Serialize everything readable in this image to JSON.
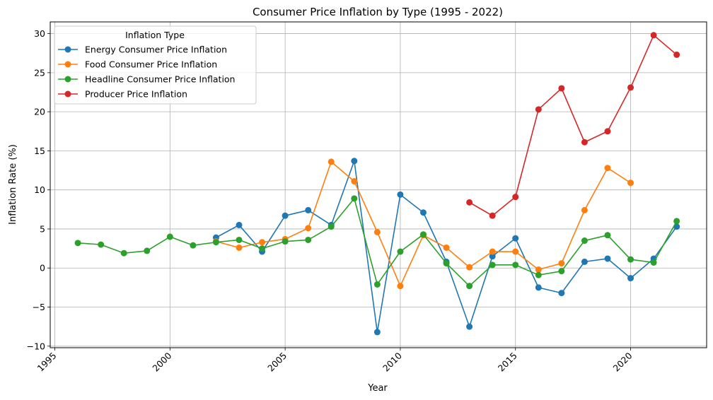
{
  "chart_data": {
    "type": "line",
    "title": "Consumer Price Inflation by Type (1995 - 2022)",
    "xlabel": "Year",
    "ylabel": "Inflation Rate (%)",
    "xlim": [
      1994.8,
      2023.3
    ],
    "ylim": [
      -10.2,
      31.5
    ],
    "xticks": [
      1995,
      2000,
      2005,
      2010,
      2015,
      2020
    ],
    "yticks": [
      -10,
      -5,
      0,
      5,
      10,
      15,
      20,
      25,
      30
    ],
    "grid": true,
    "legend": {
      "title": "Inflation Type",
      "placement": "upper-left"
    },
    "series": [
      {
        "name": "Energy Consumer Price Inflation",
        "color": "#1f77b4",
        "points": [
          [
            2002,
            3.9
          ],
          [
            2003,
            5.5
          ],
          [
            2004,
            2.1
          ],
          [
            2005,
            6.7
          ],
          [
            2006,
            7.4
          ],
          [
            2007,
            5.5
          ],
          [
            2008,
            13.7
          ],
          [
            2009,
            -8.2
          ],
          [
            2010,
            9.4
          ],
          [
            2011,
            7.1
          ],
          [
            2012,
            0.8
          ],
          [
            2013,
            -7.5
          ],
          [
            2014,
            1.5
          ],
          [
            2015,
            3.8
          ],
          [
            2016,
            -2.5
          ],
          [
            2017,
            -3.2
          ],
          [
            2018,
            0.8
          ],
          [
            2019,
            1.2
          ],
          [
            2020,
            -1.3
          ],
          [
            2021,
            1.2
          ],
          [
            2022,
            5.3
          ]
        ]
      },
      {
        "name": "Food Consumer Price Inflation",
        "color": "#ff7f0e",
        "points": [
          [
            2002,
            3.4
          ],
          [
            2003,
            2.6
          ],
          [
            2004,
            3.3
          ],
          [
            2005,
            3.7
          ],
          [
            2006,
            5.1
          ],
          [
            2007,
            13.6
          ],
          [
            2008,
            11.1
          ],
          [
            2009,
            4.6
          ],
          [
            2010,
            -2.3
          ],
          [
            2011,
            4.2
          ],
          [
            2012,
            2.6
          ],
          [
            2013,
            0.1
          ],
          [
            2014,
            2.1
          ],
          [
            2015,
            2.1
          ],
          [
            2016,
            -0.2
          ],
          [
            2017,
            0.6
          ],
          [
            2018,
            7.4
          ],
          [
            2019,
            12.8
          ],
          [
            2020,
            10.9
          ]
        ]
      },
      {
        "name": "Headline Consumer Price Inflation",
        "color": "#2ca02c",
        "points": [
          [
            1996,
            3.2
          ],
          [
            1997,
            3.0
          ],
          [
            1998,
            1.9
          ],
          [
            1999,
            2.2
          ],
          [
            2000,
            4.0
          ],
          [
            2001,
            2.9
          ],
          [
            2002,
            3.3
          ],
          [
            2003,
            3.6
          ],
          [
            2004,
            2.5
          ],
          [
            2005,
            3.4
          ],
          [
            2006,
            3.6
          ],
          [
            2007,
            5.3
          ],
          [
            2008,
            8.9
          ],
          [
            2009,
            -2.1
          ],
          [
            2010,
            2.1
          ],
          [
            2011,
            4.3
          ],
          [
            2012,
            0.6
          ],
          [
            2013,
            -2.3
          ],
          [
            2014,
            0.4
          ],
          [
            2015,
            0.4
          ],
          [
            2016,
            -0.9
          ],
          [
            2017,
            -0.4
          ],
          [
            2018,
            3.5
          ],
          [
            2019,
            4.2
          ],
          [
            2020,
            1.1
          ],
          [
            2021,
            0.7
          ],
          [
            2022,
            6.0
          ]
        ]
      },
      {
        "name": "Producer Price Inflation",
        "color": "#d62728",
        "points": [
          [
            2013,
            8.4
          ],
          [
            2014,
            6.7
          ],
          [
            2015,
            9.1
          ],
          [
            2016,
            20.3
          ],
          [
            2017,
            23.0
          ],
          [
            2018,
            16.1
          ],
          [
            2019,
            17.5
          ],
          [
            2020,
            23.1
          ],
          [
            2021,
            29.8
          ],
          [
            2022,
            27.3
          ]
        ]
      }
    ]
  }
}
